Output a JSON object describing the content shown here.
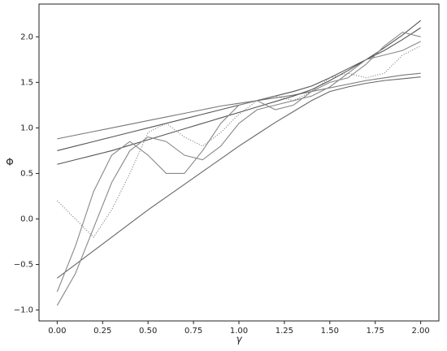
{
  "chart_data": {
    "type": "line",
    "x_label": "γ",
    "y_label": "Φ",
    "x": [
      0.0,
      0.1,
      0.2,
      0.3,
      0.4,
      0.5,
      0.6,
      0.7,
      0.8,
      0.9,
      1.0,
      1.1,
      1.2,
      1.3,
      1.4,
      1.5,
      1.6,
      1.7,
      1.8,
      1.9,
      2.0
    ],
    "series": [
      {
        "color": "#777777",
        "style": "solid",
        "values": [
          0.88,
          0.92,
          0.96,
          1.0,
          1.04,
          1.08,
          1.12,
          1.16,
          1.2,
          1.24,
          1.27,
          1.3,
          1.33,
          1.36,
          1.4,
          1.44,
          1.48,
          1.52,
          1.55,
          1.58,
          1.6
        ]
      },
      {
        "color": "#555555",
        "style": "solid",
        "values": [
          0.75,
          0.8,
          0.85,
          0.9,
          0.95,
          1.0,
          1.05,
          1.1,
          1.15,
          1.2,
          1.25,
          1.3,
          1.35,
          1.4,
          1.46,
          1.55,
          1.65,
          1.75,
          1.85,
          1.97,
          2.1
        ]
      },
      {
        "color": "#555555",
        "style": "solid",
        "values": [
          0.6,
          0.65,
          0.7,
          0.75,
          0.81,
          0.87,
          0.93,
          0.99,
          1.05,
          1.11,
          1.17,
          1.23,
          1.29,
          1.35,
          1.42,
          1.52,
          1.63,
          1.75,
          1.88,
          2.02,
          2.18
        ]
      },
      {
        "color": "#666666",
        "style": "solid",
        "values": [
          -0.65,
          -0.5,
          -0.35,
          -0.2,
          -0.05,
          0.1,
          0.24,
          0.38,
          0.52,
          0.66,
          0.8,
          0.93,
          1.06,
          1.18,
          1.3,
          1.4,
          1.45,
          1.49,
          1.52,
          1.54,
          1.56
        ]
      },
      {
        "color": "#888888",
        "style": "solid",
        "values": [
          -0.95,
          -0.6,
          -0.1,
          0.4,
          0.75,
          0.9,
          0.85,
          0.7,
          0.65,
          0.8,
          1.05,
          1.2,
          1.25,
          1.3,
          1.35,
          1.45,
          1.6,
          1.75,
          1.8,
          1.85,
          1.95
        ]
      },
      {
        "color": "#888888",
        "style": "solid",
        "values": [
          -0.8,
          -0.3,
          0.3,
          0.7,
          0.85,
          0.7,
          0.5,
          0.5,
          0.75,
          1.05,
          1.25,
          1.3,
          1.2,
          1.25,
          1.4,
          1.5,
          1.55,
          1.7,
          1.9,
          2.05,
          2.0
        ]
      },
      {
        "color": "#777777",
        "style": "dotted",
        "values": [
          0.2,
          0.0,
          -0.2,
          0.1,
          0.5,
          0.95,
          1.05,
          0.9,
          0.8,
          0.95,
          1.15,
          1.3,
          1.35,
          1.3,
          1.4,
          1.55,
          1.6,
          1.55,
          1.6,
          1.8,
          1.9
        ]
      }
    ],
    "xlim": [
      -0.1,
      2.1
    ],
    "ylim": [
      -1.12,
      2.36
    ],
    "xticks": [
      {
        "value": 0,
        "label": "0.00"
      },
      {
        "value": 0.25,
        "label": "0.25"
      },
      {
        "value": 0.5,
        "label": "0.50"
      },
      {
        "value": 0.75,
        "label": "0.75"
      },
      {
        "value": 1,
        "label": "1.00"
      },
      {
        "value": 1.25,
        "label": "1.25"
      },
      {
        "value": 1.5,
        "label": "1.50"
      },
      {
        "value": 1.75,
        "label": "1.75"
      },
      {
        "value": 2,
        "label": "2.00"
      }
    ],
    "yticks": [
      {
        "value": -1,
        "label": "−1.0"
      },
      {
        "value": -0.5,
        "label": "−0.5"
      },
      {
        "value": 0,
        "label": "0.0"
      },
      {
        "value": 0.5,
        "label": "0.5"
      },
      {
        "value": 1,
        "label": "1.0"
      },
      {
        "value": 1.5,
        "label": "1.5"
      },
      {
        "value": 2,
        "label": "2.0"
      }
    ]
  }
}
